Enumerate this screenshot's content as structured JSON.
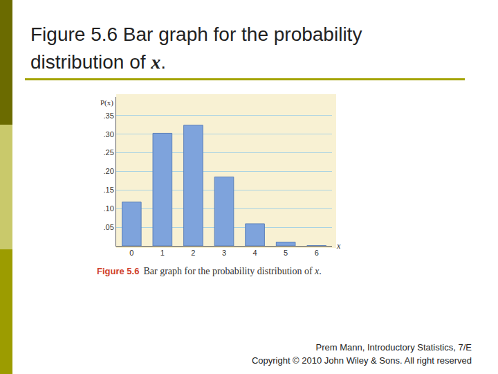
{
  "slide": {
    "title": "Figure 5.6 Bar graph for the probability distribution of x.",
    "footer": [
      "Prem Mann, Introductory Statistics, 7/E",
      "Copyright © 2010 John Wiley & Sons. All right reserved"
    ]
  },
  "chart_data": {
    "type": "bar",
    "caption": {
      "label": "Figure 5.6",
      "text": "Bar graph for the probability distribution of x."
    },
    "x_label": "x",
    "y_label": "P(x)",
    "categories": [
      "0",
      "1",
      "2",
      "3",
      "4",
      "5",
      "6"
    ],
    "values": [
      0.1176,
      0.3025,
      0.3241,
      0.1852,
      0.0595,
      0.0102,
      0.0007
    ],
    "color": "#7ea3dc",
    "ylim": [
      0,
      0.4
    ],
    "yticks": [
      {
        "value": 0.05,
        "label": ".05"
      },
      {
        "value": 0.1,
        "label": ".10"
      },
      {
        "value": 0.15,
        "label": ".15"
      },
      {
        "value": 0.2,
        "label": ".20"
      },
      {
        "value": 0.25,
        "label": ".25"
      },
      {
        "value": 0.3,
        "label": ".30"
      },
      {
        "value": 0.35,
        "label": ".35"
      }
    ],
    "grid": true
  }
}
